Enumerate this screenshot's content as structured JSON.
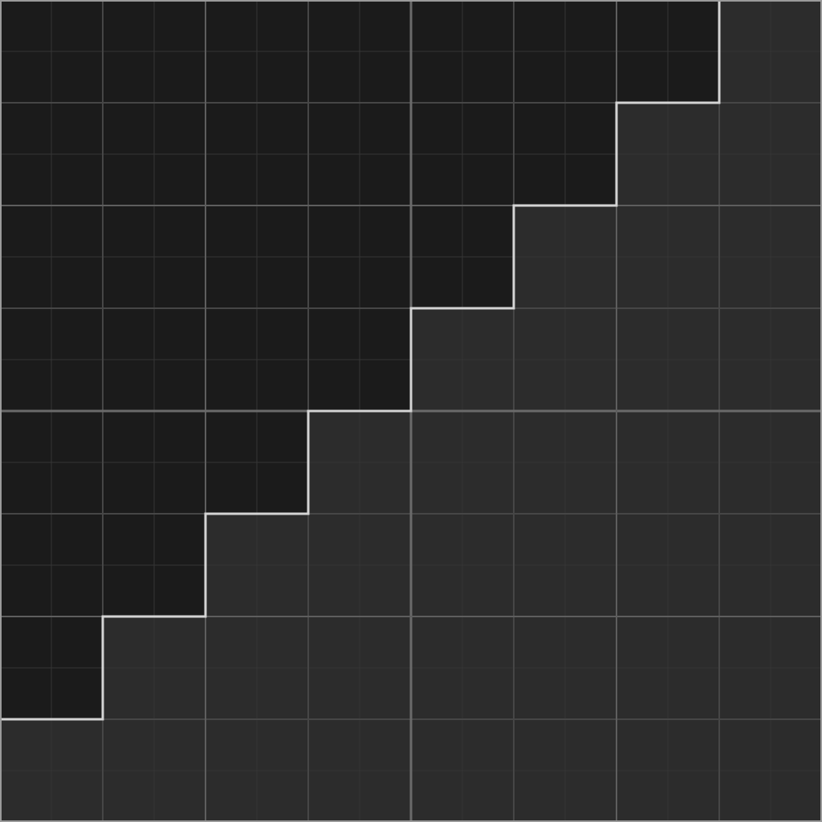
{
  "board": {
    "rows": 8,
    "cols": 8,
    "subdivisions_per_cell": 2,
    "major_every": 2,
    "colors": {
      "filled": "#1b1b1b",
      "empty": "#2c2c2c",
      "fine_line": "#353535",
      "cell_line": "#464646",
      "major_line": "#5e5e5e",
      "center_line": "#6a6a6a",
      "border": "#9a9a9a",
      "staircase": "#d4d4d4"
    },
    "filled_cells_per_row": [
      7,
      6,
      5,
      4,
      3,
      2,
      1,
      0
    ]
  }
}
